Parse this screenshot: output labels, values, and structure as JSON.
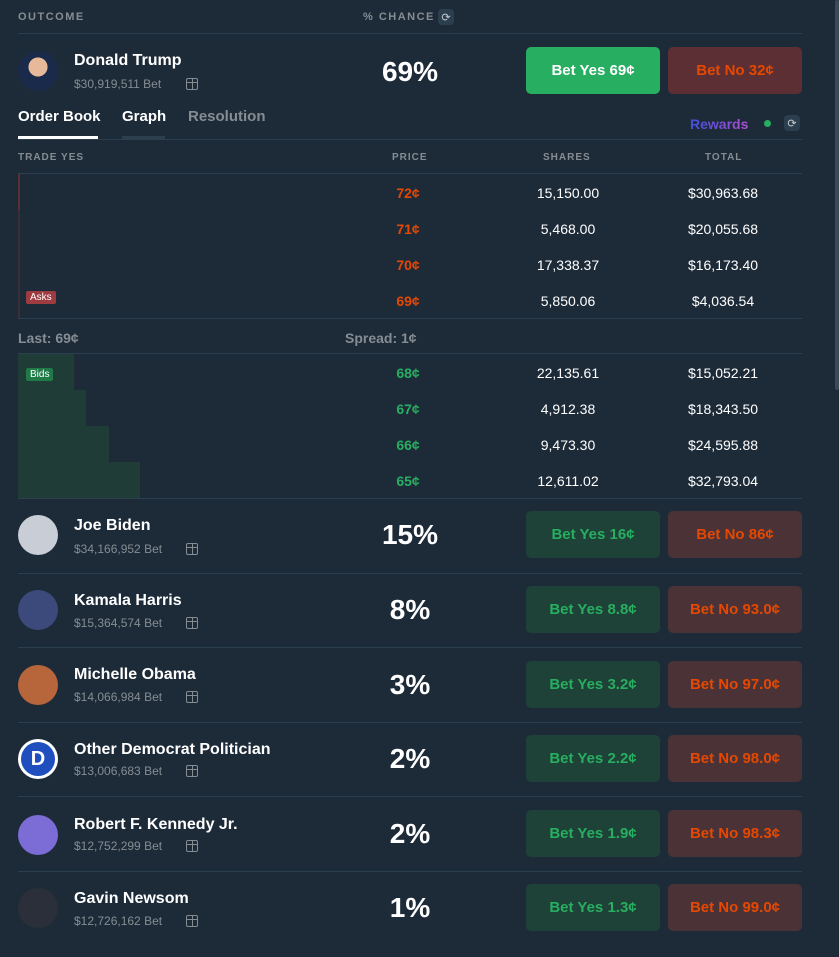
{
  "header": {
    "outcome_label": "OUTCOME",
    "chance_label": "% CHANCE"
  },
  "colors": {
    "background": "#1d2b39",
    "yes_green": "#27ae60",
    "no_red": "#e64800",
    "muted": "#858d92"
  },
  "featured": {
    "name": "Donald Trump",
    "volume": "$30,919,511 Bet",
    "chance": "69%",
    "yes_label": "Bet Yes 69¢",
    "no_label": "Bet No 32¢"
  },
  "tabs": [
    {
      "label": "Order Book"
    },
    {
      "label": "Graph"
    },
    {
      "label": "Resolution"
    }
  ],
  "rewards_label": "Rewards",
  "order_book": {
    "columns": {
      "trade": "TRADE YES",
      "price": "PRICE",
      "shares": "SHARES",
      "total": "TOTAL"
    },
    "asks_label": "Asks",
    "bids_label": "Bids",
    "asks": [
      {
        "price": "72¢",
        "shares": "15,150.00",
        "total": "$30,963.68"
      },
      {
        "price": "71¢",
        "shares": "5,468.00",
        "total": "$20,055.68"
      },
      {
        "price": "70¢",
        "shares": "17,338.37",
        "total": "$16,173.40"
      },
      {
        "price": "69¢",
        "shares": "5,850.06",
        "total": "$4,036.54"
      }
    ],
    "last": "Last: 69¢",
    "spread": "Spread: 1¢",
    "bids": [
      {
        "price": "68¢",
        "shares": "22,135.61",
        "total": "$15,052.21"
      },
      {
        "price": "67¢",
        "shares": "4,912.38",
        "total": "$18,343.50"
      },
      {
        "price": "66¢",
        "shares": "9,473.30",
        "total": "$24,595.88"
      },
      {
        "price": "65¢",
        "shares": "12,611.02",
        "total": "$32,793.04"
      }
    ]
  },
  "outcomes": [
    {
      "name": "Joe Biden",
      "volume": "$34,166,952 Bet",
      "chance": "15%",
      "yes_label": "Bet Yes 16¢",
      "no_label": "Bet No 86¢",
      "avatar_color": "#c9ced6"
    },
    {
      "name": "Kamala Harris",
      "volume": "$15,364,574 Bet",
      "chance": "8%",
      "yes_label": "Bet Yes 8.8¢",
      "no_label": "Bet No 93.0¢",
      "avatar_color": "#3b4a7a"
    },
    {
      "name": "Michelle Obama",
      "volume": "$14,066,984 Bet",
      "chance": "3%",
      "yes_label": "Bet Yes 3.2¢",
      "no_label": "Bet No 97.0¢",
      "avatar_color": "#b7653a"
    },
    {
      "name": "Other Democrat Politician",
      "volume": "$13,006,683 Bet",
      "chance": "2%",
      "yes_label": "Bet Yes 2.2¢",
      "no_label": "Bet No 98.0¢",
      "avatar_color": "#ffffff"
    },
    {
      "name": "Robert F. Kennedy Jr.",
      "volume": "$12,752,299 Bet",
      "chance": "2%",
      "yes_label": "Bet Yes 1.9¢",
      "no_label": "Bet No 98.3¢",
      "avatar_color": "#7b6cd6"
    },
    {
      "name": "Gavin Newsom",
      "volume": "$12,726,162 Bet",
      "chance": "1%",
      "yes_label": "Bet Yes 1.3¢",
      "no_label": "Bet No 99.0¢",
      "avatar_color": "#2a2f3a"
    }
  ]
}
